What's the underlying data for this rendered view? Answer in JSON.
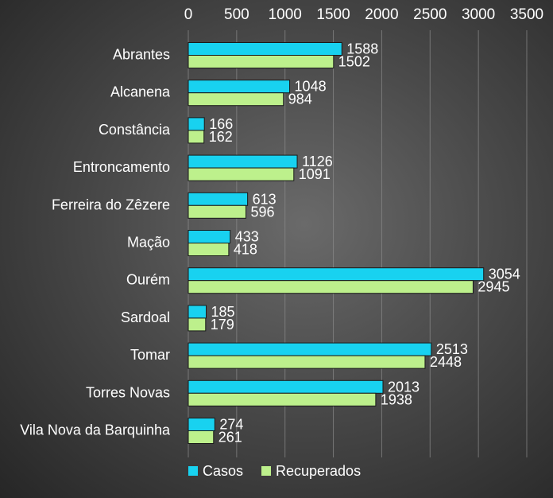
{
  "chart_data": {
    "type": "bar",
    "orientation": "horizontal",
    "categories": [
      "Abrantes",
      "Alcanena",
      "Constância",
      "Entroncamento",
      "Ferreira do Zêzere",
      "Mação",
      "Ourém",
      "Sardoal",
      "Tomar",
      "Torres Novas",
      "Vila Nova da Barquinha"
    ],
    "series": [
      {
        "name": "Casos",
        "values": [
          1588,
          1048,
          166,
          1126,
          613,
          433,
          3054,
          185,
          2513,
          2013,
          274
        ],
        "color": "#18d2f0"
      },
      {
        "name": "Recuperados",
        "values": [
          1502,
          984,
          162,
          1091,
          596,
          418,
          2945,
          179,
          2448,
          1938,
          261
        ],
        "color": "#bdf08c"
      }
    ],
    "xlim": [
      0,
      3500
    ],
    "xticks": [
      0,
      500,
      1000,
      1500,
      2000,
      2500,
      3000,
      3500
    ],
    "axis_position": "top",
    "grid": true,
    "legend": "bottom"
  }
}
